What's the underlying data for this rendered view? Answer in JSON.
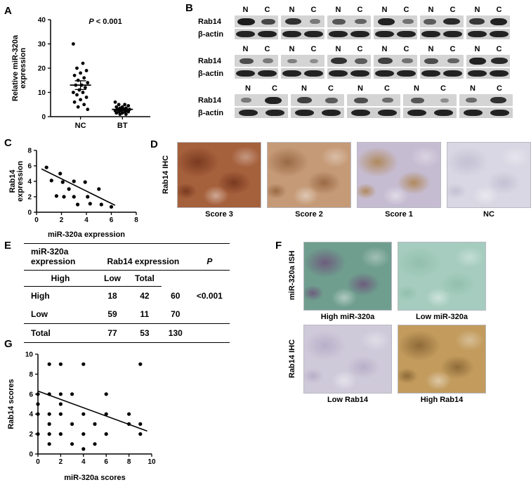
{
  "panels": {
    "a": {
      "label": "A"
    },
    "b": {
      "label": "B",
      "protein_label": "Rab14",
      "loading_label": "β-actin",
      "rows": [
        {
          "lanes": [
            "N",
            "C",
            "N",
            "C",
            "N",
            "C",
            "N",
            "C",
            "N",
            "C",
            "N",
            "C"
          ],
          "rab14": [
            0.95,
            0.65,
            0.8,
            0.3,
            0.55,
            0.45,
            0.9,
            0.35,
            0.5,
            0.85,
            0.75,
            0.9
          ],
          "actin": [
            0.9,
            0.9,
            0.9,
            0.9,
            0.9,
            0.9,
            0.9,
            0.9,
            0.9,
            0.9,
            0.9,
            0.9
          ]
        },
        {
          "lanes": [
            "N",
            "C",
            "N",
            "C",
            "N",
            "C",
            "N",
            "C",
            "N",
            "C",
            "N",
            "C"
          ],
          "rab14": [
            0.6,
            0.3,
            0.25,
            0.15,
            0.8,
            0.5,
            0.7,
            0.35,
            0.6,
            0.45,
            0.9,
            0.85
          ],
          "actin": [
            0.9,
            0.9,
            0.9,
            0.9,
            0.9,
            0.9,
            0.9,
            0.9,
            0.9,
            0.9,
            0.9,
            0.9
          ]
        },
        {
          "lanes": [
            "N",
            "C",
            "N",
            "C",
            "N",
            "C",
            "N",
            "C",
            "N",
            "C"
          ],
          "rab14": [
            0.3,
            0.9,
            0.7,
            0.5,
            0.6,
            0.4,
            0.55,
            0.15,
            0.4,
            0.8
          ],
          "actin": [
            0.9,
            0.9,
            0.9,
            0.9,
            0.9,
            0.9,
            0.9,
            0.9,
            0.9,
            0.9
          ]
        }
      ]
    },
    "c": {
      "label": "C"
    },
    "d": {
      "label": "D",
      "side_label": "Rab14 IHC",
      "images": [
        {
          "caption": "Score 3",
          "base": "#a5603c",
          "accent": "#7a3a20"
        },
        {
          "caption": "Score 2",
          "base": "#c59a77",
          "accent": "#9a6a44"
        },
        {
          "caption": "Score 1",
          "base": "#c6bcd2",
          "accent": "#b08a5e"
        },
        {
          "caption": "NC",
          "base": "#d9d7e3",
          "accent": "#c3c1d3"
        }
      ]
    },
    "e": {
      "label": "E",
      "table": {
        "col1_header_line1": "miR-320a",
        "col1_header_line2": "expression",
        "group_header": "Rab14 expression",
        "sub_headers": [
          "High",
          "Low",
          "Total"
        ],
        "p_header": "P",
        "rows": [
          {
            "name": "High",
            "high": "18",
            "low": "42",
            "total": "60",
            "p": "<0.001"
          },
          {
            "name": "Low",
            "high": "59",
            "low": "11",
            "total": "70",
            "p": ""
          },
          {
            "name": "Total",
            "high": "77",
            "low": "53",
            "total": "130",
            "p": ""
          }
        ]
      }
    },
    "f": {
      "label": "F",
      "rows": [
        {
          "side_label": "miR-320a ISH",
          "images": [
            {
              "caption": "High miR-320a",
              "base": "#6f9e8e",
              "accent": "#6d5d7d"
            },
            {
              "caption": "Low miR-320a",
              "base": "#a5ccbe",
              "accent": "#92bfae"
            }
          ]
        },
        {
          "side_label": "Rab14 IHC",
          "images": [
            {
              "caption": "Low Rab14",
              "base": "#cfcada",
              "accent": "#b7afc8"
            },
            {
              "caption": "High Rab14",
              "base": "#c29b5d",
              "accent": "#8e6a38"
            }
          ]
        }
      ]
    },
    "g": {
      "label": "G"
    }
  },
  "chart_data": [
    {
      "id": "A",
      "type": "scatter",
      "mode": "category",
      "annotation": "P < 0.001",
      "ylabel_lines": [
        "Relative miR-320a",
        "expression"
      ],
      "categories": [
        "NC",
        "BT"
      ],
      "ylim": [
        0,
        40
      ],
      "yticks": [
        0,
        10,
        20,
        30,
        40
      ],
      "series": [
        {
          "name": "NC",
          "mean": 13,
          "sem": 1.8,
          "values": [
            30,
            22,
            20,
            19,
            18,
            17,
            16,
            15,
            14,
            13,
            13,
            12,
            11,
            10,
            10,
            9,
            8,
            7,
            6,
            5,
            4,
            3
          ]
        },
        {
          "name": "BT",
          "mean": 3,
          "sem": 0.4,
          "values": [
            6,
            5,
            5,
            4.5,
            4,
            4,
            3.5,
            3.5,
            3,
            3,
            3,
            2.5,
            2.5,
            2.5,
            2,
            2,
            2,
            1.5,
            1.5,
            1,
            1
          ]
        }
      ]
    },
    {
      "id": "C",
      "type": "scatter",
      "xlabel": "miR-320a expression",
      "ylabel_lines": [
        "Rab14",
        "expression"
      ],
      "xlim": [
        0,
        8
      ],
      "ylim": [
        0,
        8
      ],
      "xticks": [
        0,
        2,
        4,
        6,
        8
      ],
      "yticks": [
        0,
        2,
        4,
        6,
        8
      ],
      "points": [
        [
          0.8,
          5.8
        ],
        [
          1.2,
          4.1
        ],
        [
          1.6,
          2.1
        ],
        [
          1.9,
          5.0
        ],
        [
          2.1,
          3.9
        ],
        [
          2.2,
          2.0
        ],
        [
          2.6,
          3.0
        ],
        [
          3.0,
          4.0
        ],
        [
          3.0,
          2.0
        ],
        [
          3.3,
          1.0
        ],
        [
          3.9,
          3.9
        ],
        [
          4.1,
          2.0
        ],
        [
          4.3,
          1.1
        ],
        [
          5.0,
          3.0
        ],
        [
          5.2,
          1.0
        ],
        [
          6.0,
          0.7
        ]
      ],
      "trendline": {
        "x1": 0.4,
        "y1": 5.6,
        "x2": 6.3,
        "y2": 0.9
      }
    },
    {
      "id": "G",
      "type": "scatter",
      "xlabel": "miR-320a scores",
      "ylabel_lines": [
        "Rab14 scores"
      ],
      "xlim": [
        0,
        10
      ],
      "ylim": [
        0,
        10
      ],
      "xticks": [
        0,
        2,
        4,
        6,
        8,
        10
      ],
      "yticks": [
        0,
        2,
        4,
        6,
        8,
        10
      ],
      "points": [
        [
          1,
          9
        ],
        [
          2,
          9
        ],
        [
          4,
          9
        ],
        [
          9,
          9
        ],
        [
          0,
          6
        ],
        [
          1,
          6
        ],
        [
          2,
          6
        ],
        [
          3,
          6
        ],
        [
          6,
          6
        ],
        [
          0,
          5
        ],
        [
          2,
          5
        ],
        [
          0,
          4
        ],
        [
          1,
          4
        ],
        [
          2,
          4
        ],
        [
          4,
          4
        ],
        [
          6,
          4
        ],
        [
          8,
          4
        ],
        [
          1,
          3
        ],
        [
          3,
          3
        ],
        [
          5,
          3
        ],
        [
          8,
          3
        ],
        [
          9,
          3
        ],
        [
          0,
          2
        ],
        [
          1,
          2
        ],
        [
          2,
          2
        ],
        [
          4,
          2
        ],
        [
          6,
          2
        ],
        [
          9,
          2
        ],
        [
          1,
          1
        ],
        [
          3,
          1
        ],
        [
          5,
          1
        ],
        [
          4,
          0.5
        ]
      ],
      "trendline": {
        "x1": 0.0,
        "y1": 6.3,
        "x2": 9.6,
        "y2": 2.3
      }
    }
  ]
}
